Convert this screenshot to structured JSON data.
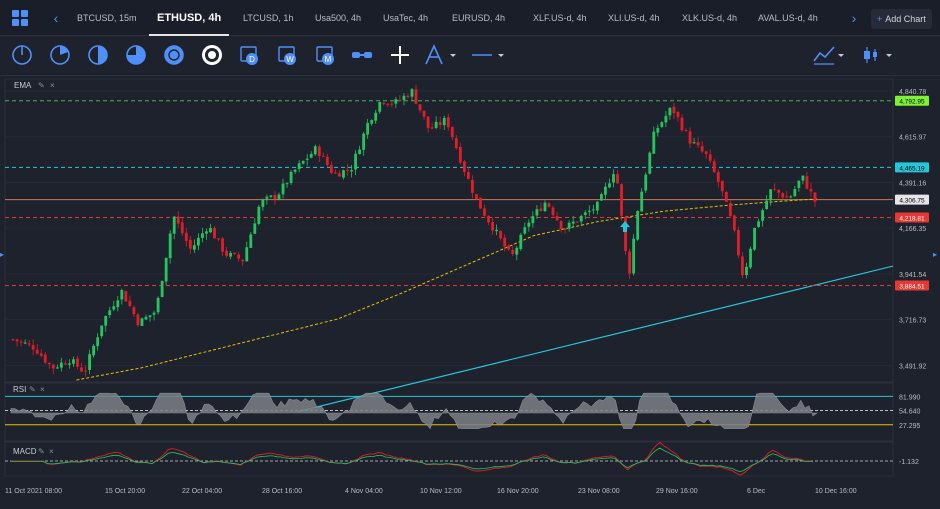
{
  "tabs": [
    {
      "label": "BTCUSD, 15m",
      "active": false
    },
    {
      "label": "ETHUSD, 4h",
      "active": true
    },
    {
      "label": "LTCUSD, 1h",
      "active": false
    },
    {
      "label": "Usa500, 4h",
      "active": false
    },
    {
      "label": "UsaTec, 4h",
      "active": false
    },
    {
      "label": "EURUSD, 4h",
      "active": false
    },
    {
      "label": "XLF.US-d, 4h",
      "active": false
    },
    {
      "label": "XLI.US-d, 4h",
      "active": false
    },
    {
      "label": "XLK.US-d, 4h",
      "active": false
    },
    {
      "label": "AVAL.US-d, 4h",
      "active": false
    }
  ],
  "add_chart": {
    "plus": "+",
    "label": "Add Chart"
  },
  "toolbar": {
    "icons": [
      "crosshair-cursor-icon",
      "pie-icon",
      "circle-half-icon",
      "clock-icon",
      "clock-active-icon",
      "calendar-d-icon",
      "calendar-w-icon",
      "calendar-m-icon",
      "link-icon",
      "cross-icon",
      "pen-tool-icon",
      "line-icon"
    ],
    "right_icons": [
      "indicator-icon",
      "candle-type-icon"
    ],
    "letters": {
      "d": "D",
      "w": "W",
      "m": "M"
    }
  },
  "colors": {
    "up": "#22c55e",
    "down": "#e11d2a",
    "ema": "#e5c100",
    "trend": "#26c6da",
    "green_line": "#4caf50",
    "cyan_line": "#26c6da",
    "red_line": "#e53935",
    "current": "#d0d4dc"
  },
  "main_panel": {
    "indicator_label": "EMA",
    "price_axis": [
      "4,840.78",
      "4,615.97",
      "4,391.16",
      "4,166.35",
      "3,941.54",
      "3,716.73",
      "3,491.92"
    ],
    "levels": [
      {
        "name": "green-level",
        "price": 4792.95,
        "label": "4,792.95",
        "color": "#7cf232",
        "text_color": "#000000"
      },
      {
        "name": "cyan-level",
        "price": 4465.19,
        "label": "4,465.19",
        "color": "#26c6da",
        "text_color": "#000000"
      },
      {
        "name": "current-price",
        "price": 4306.75,
        "label": "4,306.75",
        "color": "#e6e6e6",
        "text_color": "#000000"
      },
      {
        "name": "red-level",
        "price": 4218.81,
        "label": "4,218.81",
        "color": "#e53935",
        "text_color": "#ffffff"
      },
      {
        "name": "red-level-low",
        "price": 3884.51,
        "label": "3,884.51",
        "color": "#e53935",
        "text_color": "#ffffff"
      }
    ]
  },
  "rsi_panel": {
    "label": "RSI",
    "axis": [
      "81.990",
      "54.640",
      "27.295"
    ]
  },
  "macd_panel": {
    "label": "MACD",
    "axis": [
      "-1.132"
    ]
  },
  "time_axis": [
    "11 Oct 2021 08:00",
    "15 Oct 20:00",
    "22 Oct 04:00",
    "28 Oct 16:00",
    "4 Nov 04:00",
    "10 Nov 12:00",
    "16 Nov 20:00",
    "23 Nov 08:00",
    "29 Nov 16:00",
    "6 Dec",
    "10 Dec 16:00"
  ],
  "chart_data": {
    "type": "candlestick",
    "price_range": [
      3420,
      4880
    ],
    "price_anchors": [
      [
        0,
        3620
      ],
      [
        10,
        3580
      ],
      [
        18,
        3480
      ],
      [
        26,
        3520
      ],
      [
        33,
        3460
      ],
      [
        41,
        3700
      ],
      [
        50,
        3860
      ],
      [
        58,
        3700
      ],
      [
        66,
        3760
      ],
      [
        74,
        4230
      ],
      [
        82,
        4060
      ],
      [
        90,
        4180
      ],
      [
        98,
        4040
      ],
      [
        106,
        4010
      ],
      [
        114,
        4290
      ],
      [
        122,
        4330
      ],
      [
        130,
        4450
      ],
      [
        140,
        4560
      ],
      [
        148,
        4430
      ],
      [
        156,
        4460
      ],
      [
        164,
        4690
      ],
      [
        170,
        4800
      ],
      [
        176,
        4780
      ],
      [
        184,
        4840
      ],
      [
        192,
        4650
      ],
      [
        200,
        4700
      ],
      [
        208,
        4460
      ],
      [
        214,
        4300
      ],
      [
        222,
        4160
      ],
      [
        230,
        4020
      ],
      [
        238,
        4200
      ],
      [
        246,
        4300
      ],
      [
        254,
        4160
      ],
      [
        262,
        4220
      ],
      [
        270,
        4280
      ],
      [
        278,
        4470
      ],
      [
        284,
        3920
      ],
      [
        288,
        4250
      ],
      [
        296,
        4640
      ],
      [
        304,
        4760
      ],
      [
        312,
        4600
      ],
      [
        320,
        4520
      ],
      [
        326,
        4380
      ],
      [
        332,
        4180
      ],
      [
        337,
        3920
      ],
      [
        342,
        4160
      ],
      [
        350,
        4360
      ],
      [
        358,
        4310
      ],
      [
        364,
        4420
      ],
      [
        370,
        4300
      ]
    ],
    "ema_anchors": [
      [
        30,
        3420
      ],
      [
        60,
        3480
      ],
      [
        90,
        3560
      ],
      [
        120,
        3640
      ],
      [
        150,
        3720
      ],
      [
        180,
        3850
      ],
      [
        210,
        3990
      ],
      [
        240,
        4130
      ],
      [
        270,
        4200
      ],
      [
        300,
        4250
      ],
      [
        330,
        4280
      ],
      [
        355,
        4300
      ],
      [
        370,
        4310
      ]
    ],
    "trend_line": [
      [
        3400,
        3560
      ],
      [
        4880,
        3980
      ]
    ],
    "rsi_range": [
      0,
      100
    ],
    "rsi_levels": [
      81.99,
      54.64,
      27.295
    ],
    "macd_zero": -1.132
  }
}
